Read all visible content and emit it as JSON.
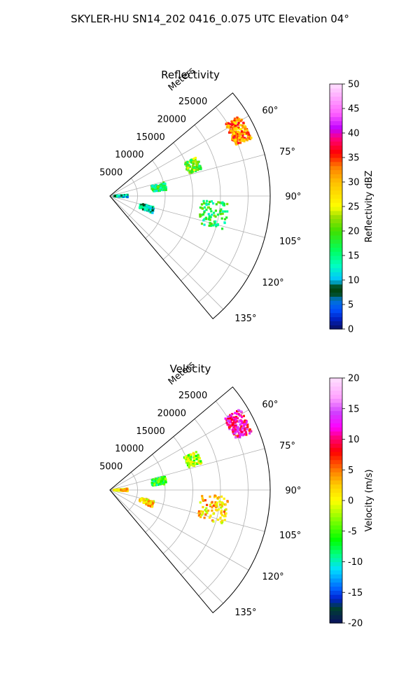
{
  "figure": {
    "title": "SKYLER-HU  SN14_202  0416_0.075 UTC Elevation 04°"
  },
  "chart_data": [
    {
      "type": "polar-sector",
      "title": "Reflectivity",
      "radial_label": "Meters",
      "radial_ticks": [
        "5000",
        "10000",
        "15000",
        "20000",
        "25000"
      ],
      "radial_range": [
        0,
        29000
      ],
      "angular_ticks": [
        "60°",
        "75°",
        "90°",
        "105°",
        "120°",
        "135°"
      ],
      "angular_range_deg": [
        50,
        140
      ],
      "grid": true,
      "colorbar": {
        "label": "Reflectivity dBZ",
        "range": [
          0,
          50
        ],
        "ticks": [
          "0",
          "5",
          "10",
          "15",
          "20",
          "25",
          "30",
          "35",
          "40",
          "45",
          "50"
        ],
        "cmap": "NWS reflectivity (pyart_NWSRef)"
      },
      "features": [
        {
          "name": "strong cell near 60°",
          "azimuth_deg": 63,
          "range_m": 26000,
          "value": 32
        },
        {
          "name": "cluster 15000 m near 70°",
          "azimuth_deg": 70,
          "range_m": 16000,
          "value": 20
        },
        {
          "name": "cluster near 80°",
          "azimuth_deg": 80,
          "range_m": 9000,
          "value": 17
        },
        {
          "name": "near-radar returns",
          "azimuth_deg": 90,
          "range_m": 2000,
          "value": 10
        },
        {
          "name": "band near 100°",
          "azimuth_deg": 100,
          "range_m": 19000,
          "value": 17
        },
        {
          "name": "cluster near 108°",
          "azimuth_deg": 108,
          "range_m": 7000,
          "value": 12
        }
      ]
    },
    {
      "type": "polar-sector",
      "title": "Velocity",
      "radial_label": "Meters",
      "radial_ticks": [
        "5000",
        "10000",
        "15000",
        "20000",
        "25000"
      ],
      "radial_range": [
        0,
        29000
      ],
      "angular_ticks": [
        "60°",
        "75°",
        "90°",
        "105°",
        "120°",
        "135°"
      ],
      "angular_range_deg": [
        50,
        140
      ],
      "grid": true,
      "colorbar": {
        "label": "Velocity (m/s)",
        "range": [
          -20,
          20
        ],
        "ticks": [
          "-20",
          "-15",
          "-10",
          "-5",
          "0",
          "5",
          "10",
          "15",
          "20"
        ],
        "cmap": "NWS velocity (pyart_NWSVel)"
      },
      "features": [
        {
          "name": "strong cell near 60°",
          "azimuth_deg": 63,
          "range_m": 26000,
          "value": 11
        },
        {
          "name": "cluster 15000 m near 70°",
          "azimuth_deg": 70,
          "range_m": 16000,
          "value": -3
        },
        {
          "name": "cluster near 80°",
          "azimuth_deg": 80,
          "range_m": 9000,
          "value": -6
        },
        {
          "name": "near-radar returns",
          "azimuth_deg": 90,
          "range_m": 2000,
          "value": 1
        },
        {
          "name": "band near 100°",
          "azimuth_deg": 100,
          "range_m": 19000,
          "value": 2
        },
        {
          "name": "cluster near 108°",
          "azimuth_deg": 108,
          "range_m": 7000,
          "value": 2
        }
      ]
    }
  ]
}
